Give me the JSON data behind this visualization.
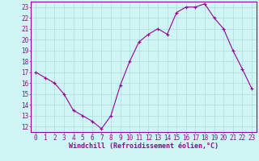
{
  "x": [
    0,
    1,
    2,
    3,
    4,
    5,
    6,
    7,
    8,
    9,
    10,
    11,
    12,
    13,
    14,
    15,
    16,
    17,
    18,
    19,
    20,
    21,
    22,
    23
  ],
  "y": [
    17.0,
    16.5,
    16.0,
    15.0,
    13.5,
    13.0,
    12.5,
    11.8,
    13.0,
    15.8,
    18.0,
    19.8,
    20.5,
    21.0,
    20.5,
    22.5,
    23.0,
    23.0,
    23.3,
    22.0,
    21.0,
    19.0,
    17.3,
    15.5
  ],
  "line_color": "#990099",
  "marker": "+",
  "marker_size": 3,
  "marker_lw": 0.8,
  "bg_color": "#cff5f5",
  "grid_color": "#aadddd",
  "xlabel": "Windchill (Refroidissement éolien,°C)",
  "xlim": [
    -0.5,
    23.5
  ],
  "ylim": [
    11.5,
    23.5
  ],
  "yticks": [
    12,
    13,
    14,
    15,
    16,
    17,
    18,
    19,
    20,
    21,
    22,
    23
  ],
  "xticks": [
    0,
    1,
    2,
    3,
    4,
    5,
    6,
    7,
    8,
    9,
    10,
    11,
    12,
    13,
    14,
    15,
    16,
    17,
    18,
    19,
    20,
    21,
    22,
    23
  ],
  "tick_color": "#990099",
  "axis_color": "#990099",
  "xlabel_color": "#990099",
  "xlabel_fontsize": 6.0,
  "tick_fontsize": 5.5,
  "line_width": 0.8
}
